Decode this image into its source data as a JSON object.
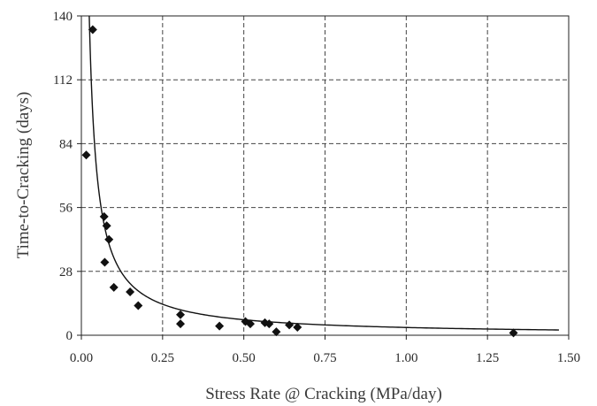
{
  "chart_data": {
    "type": "scatter",
    "title": "",
    "xlabel": "Stress Rate @ Cracking (MPa/day)",
    "ylabel": "Time-to-Cracking (days)",
    "xlim": [
      0,
      1.5
    ],
    "ylim": [
      0,
      140
    ],
    "xticks": [
      "0.00",
      "0.25",
      "0.50",
      "0.75",
      "1.00",
      "1.25",
      "1.50"
    ],
    "yticks": [
      "0",
      "28",
      "56",
      "84",
      "112",
      "140"
    ],
    "grid": true,
    "legend": "none",
    "points": [
      {
        "x": 0.015,
        "y": 79
      },
      {
        "x": 0.035,
        "y": 134
      },
      {
        "x": 0.07,
        "y": 52
      },
      {
        "x": 0.078,
        "y": 48
      },
      {
        "x": 0.085,
        "y": 42
      },
      {
        "x": 0.072,
        "y": 32
      },
      {
        "x": 0.1,
        "y": 21
      },
      {
        "x": 0.15,
        "y": 19
      },
      {
        "x": 0.175,
        "y": 13
      },
      {
        "x": 0.305,
        "y": 9
      },
      {
        "x": 0.305,
        "y": 5
      },
      {
        "x": 0.425,
        "y": 4
      },
      {
        "x": 0.505,
        "y": 6
      },
      {
        "x": 0.52,
        "y": 5
      },
      {
        "x": 0.565,
        "y": 5.5
      },
      {
        "x": 0.578,
        "y": 5
      },
      {
        "x": 0.6,
        "y": 1.5
      },
      {
        "x": 0.64,
        "y": 4.5
      },
      {
        "x": 0.665,
        "y": 3.5
      },
      {
        "x": 1.33,
        "y": 1
      }
    ],
    "fit": {
      "type": "power",
      "equation_form": "y = a * x^(-b)",
      "a": 3.4,
      "b": 1.0
    },
    "colors": {
      "marker": "#111111",
      "fit_line": "#111111",
      "grid": "#444444",
      "axis_title": "#3a3a3a",
      "tick_text": "#2a2a2a"
    }
  }
}
